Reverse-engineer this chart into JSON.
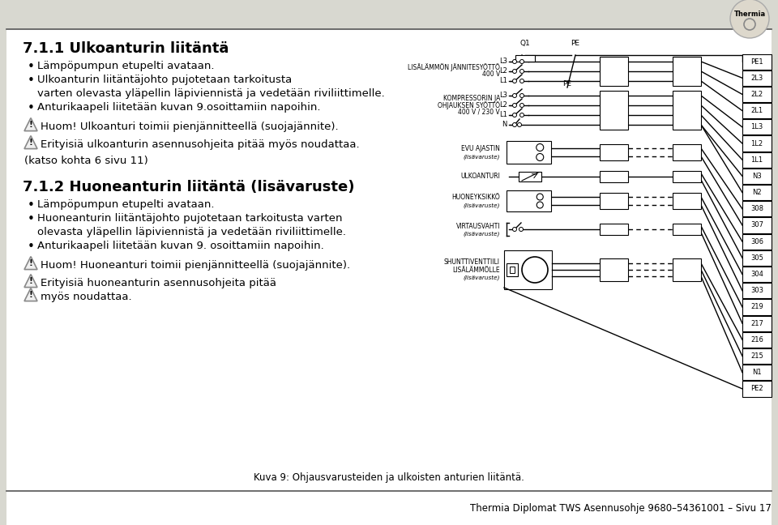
{
  "bg_color": "#e8e8e0",
  "page_bg": "#ffffff",
  "title1": "7.1.1 Ulkoanturin liitäntä",
  "bullets1": [
    "Lämpöpumpun etupelti avataan.",
    "Ulkoanturin liitäntäjohto pujotetaan tarkoitusta",
    "varten olevasta yläpellin läpiviennistä ja vedetään riviliittimelle.",
    "Anturikaapeli liitetään kuvan 9.osoittamiin napoihin."
  ],
  "bullet1_wrap": [
    false,
    true,
    false,
    false
  ],
  "warning1a": "Huom! Ulkoanturi toimii pienjännitteellä (suojajännite).",
  "warning1b": "Erityisiä ulkoanturin asennusohjeita pitää myös noudattaa.",
  "note1": "(katso kohta 6 sivu 11)",
  "title2": "7.1.2 Huoneanturin liitäntä (lisävaruste)",
  "bullets2": [
    "Lämpöpumpun etupelti avataan.",
    "Huoneanturin liitäntäjohto pujotetaan tarkoitusta varten",
    "olevasta yläpellin läpiviennistä ja vedetään riviliittimelle.",
    "Anturikaapeli liitetään kuvan 9. osoittamiin napoihin."
  ],
  "bullet2_wrap": [
    false,
    true,
    false,
    false
  ],
  "warning2a": "Huom! Huoneanturi toimii pienjännitteellä (suojajännite).",
  "warning2b_line1": "Erityisiä huoneanturin asennusohjeita pitää",
  "warning2b_line2": "myös noudattaa.",
  "caption": "Kuva 9: Ohjausvarusteiden ja ulkoisten anturien liitäntä.",
  "footer": "Thermia Diplomat TWS Asennusohje 9680–54361001 – Sivu 17",
  "diagram_terminals_right": [
    "PE1",
    "2L3",
    "2L2",
    "2L1",
    "1L3",
    "1L2",
    "1L1",
    "N3",
    "N2",
    "308",
    "307",
    "306",
    "305",
    "304",
    "303",
    "219",
    "217",
    "216",
    "215",
    "N1",
    "PE2"
  ],
  "thermia_logo_text": "Thermia"
}
